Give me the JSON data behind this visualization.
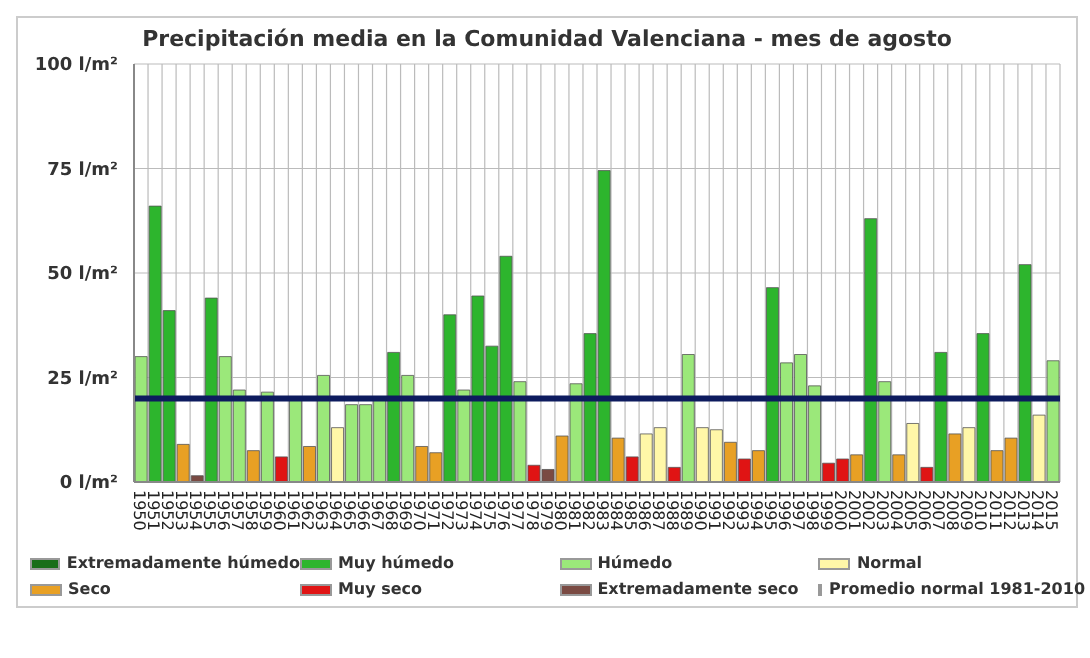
{
  "chart_data": {
    "type": "bar",
    "title": "Precipitación media en la Comunidad Valenciana - mes de agosto",
    "categories": [
      "1950",
      "1951",
      "1952",
      "1953",
      "1954",
      "1955",
      "1956",
      "1957",
      "1958",
      "1959",
      "1960",
      "1961",
      "1962",
      "1963",
      "1964",
      "1965",
      "1966",
      "1967",
      "1968",
      "1969",
      "1970",
      "1971",
      "1972",
      "1973",
      "1974",
      "1975",
      "1976",
      "1977",
      "1978",
      "1979",
      "1980",
      "1981",
      "1982",
      "1983",
      "1984",
      "1985",
      "1986",
      "1987",
      "1988",
      "1989",
      "1990",
      "1991",
      "1992",
      "1993",
      "1994",
      "1995",
      "1996",
      "1997",
      "1998",
      "1999",
      "2000",
      "2001",
      "2002",
      "2003",
      "2004",
      "2005",
      "2006",
      "2007",
      "2008",
      "2009",
      "2010",
      "2011",
      "2012",
      "2013",
      "2014",
      "2015"
    ],
    "stacked": true,
    "series": [
      {
        "name": "Extremadamente húmedo",
        "color": "#1a6e1a",
        "values": [
          null,
          null,
          null,
          null,
          null,
          null,
          null,
          null,
          null,
          null,
          null,
          null,
          null,
          null,
          null,
          null,
          null,
          null,
          null,
          null,
          null,
          null,
          null,
          null,
          null,
          null,
          null,
          null,
          null,
          null,
          null,
          null,
          null,
          null,
          null,
          null,
          null,
          null,
          null,
          null,
          null,
          null,
          null,
          null,
          null,
          null,
          null,
          null,
          null,
          null,
          null,
          null,
          null,
          null,
          null,
          null,
          null,
          null,
          null,
          null,
          null,
          null,
          null,
          null,
          null,
          null
        ]
      },
      {
        "name": "Muy húmedo",
        "color": "#2db52d",
        "values": [
          null,
          66,
          41,
          null,
          null,
          44,
          null,
          null,
          null,
          null,
          null,
          null,
          null,
          null,
          null,
          null,
          null,
          null,
          31,
          null,
          null,
          null,
          40,
          null,
          44.5,
          32.5,
          54,
          null,
          null,
          null,
          null,
          null,
          35.5,
          74.5,
          null,
          null,
          null,
          null,
          null,
          null,
          null,
          null,
          null,
          null,
          null,
          46.5,
          null,
          null,
          null,
          null,
          null,
          null,
          63,
          null,
          null,
          null,
          null,
          31,
          null,
          null,
          35.5,
          null,
          null,
          52,
          null,
          null
        ]
      },
      {
        "name": "Húmedo",
        "color": "#9be87a",
        "values": [
          30,
          null,
          null,
          null,
          null,
          null,
          30,
          22,
          null,
          21.5,
          null,
          19.5,
          null,
          25.5,
          null,
          18.5,
          18.5,
          19.5,
          null,
          25.5,
          null,
          null,
          null,
          22,
          null,
          null,
          null,
          24,
          null,
          null,
          null,
          23.5,
          null,
          null,
          null,
          null,
          null,
          null,
          null,
          30.5,
          null,
          null,
          null,
          null,
          null,
          null,
          28.5,
          30.5,
          23,
          null,
          null,
          null,
          null,
          24,
          null,
          null,
          null,
          null,
          null,
          null,
          null,
          null,
          null,
          null,
          null,
          29
        ]
      },
      {
        "name": "Normal",
        "color": "#fff7a8",
        "values": [
          null,
          null,
          null,
          null,
          null,
          null,
          null,
          null,
          null,
          null,
          null,
          null,
          null,
          null,
          13,
          null,
          null,
          null,
          null,
          null,
          null,
          null,
          null,
          null,
          null,
          null,
          null,
          null,
          null,
          null,
          null,
          null,
          null,
          null,
          null,
          null,
          11.5,
          13,
          null,
          null,
          13,
          12.5,
          null,
          null,
          null,
          null,
          null,
          null,
          null,
          null,
          null,
          null,
          null,
          null,
          null,
          14,
          null,
          null,
          null,
          13,
          null,
          null,
          null,
          null,
          16,
          null
        ]
      },
      {
        "name": "Seco",
        "color": "#e8a024",
        "values": [
          null,
          null,
          null,
          9,
          null,
          null,
          null,
          null,
          7.5,
          null,
          null,
          null,
          8.5,
          null,
          null,
          null,
          null,
          null,
          null,
          null,
          8.5,
          7,
          null,
          null,
          null,
          null,
          null,
          null,
          null,
          null,
          11,
          null,
          null,
          null,
          10.5,
          null,
          null,
          null,
          null,
          null,
          null,
          null,
          9.5,
          null,
          7.5,
          null,
          null,
          null,
          null,
          null,
          null,
          6.5,
          null,
          null,
          6.5,
          null,
          null,
          null,
          11.5,
          null,
          null,
          7.5,
          10.5,
          null,
          null,
          null
        ]
      },
      {
        "name": "Muy seco",
        "color": "#e01414",
        "values": [
          null,
          null,
          null,
          null,
          null,
          null,
          null,
          null,
          null,
          null,
          6,
          null,
          null,
          null,
          null,
          null,
          null,
          null,
          null,
          null,
          null,
          null,
          null,
          null,
          null,
          null,
          null,
          null,
          4,
          null,
          null,
          null,
          null,
          null,
          null,
          6,
          null,
          null,
          3.5,
          null,
          null,
          null,
          null,
          5.5,
          null,
          null,
          null,
          null,
          null,
          4.5,
          5.5,
          null,
          null,
          null,
          null,
          null,
          3.5,
          null,
          null,
          null,
          null,
          null,
          null,
          null,
          null,
          null
        ]
      },
      {
        "name": "Extremadamente seco",
        "color": "#7a4a42",
        "values": [
          null,
          null,
          null,
          null,
          1.5,
          null,
          null,
          null,
          null,
          null,
          null,
          null,
          null,
          null,
          null,
          null,
          null,
          null,
          null,
          null,
          null,
          null,
          null,
          null,
          null,
          null,
          null,
          null,
          null,
          3,
          null,
          null,
          null,
          null,
          null,
          null,
          null,
          null,
          null,
          null,
          null,
          null,
          null,
          null,
          null,
          null,
          null,
          null,
          null,
          null,
          null,
          null,
          null,
          null,
          null,
          null,
          null,
          null,
          null,
          null,
          null,
          null,
          null,
          null,
          null,
          null
        ]
      }
    ],
    "ref_lines": [
      {
        "axis": "y",
        "value": 20,
        "label": "Promedio normal 1981-2010",
        "color": "#0d1b5e"
      }
    ],
    "ylim": [
      0,
      100
    ],
    "yticks": [
      {
        "value": 0,
        "label": "0 l/m²"
      },
      {
        "value": 25,
        "label": "25 l/m²"
      },
      {
        "value": 50,
        "label": "50 l/m²"
      },
      {
        "value": 75,
        "label": "75 l/m²"
      },
      {
        "value": 100,
        "label": "100 l/m²"
      }
    ],
    "grid": true,
    "legend": "bottom"
  }
}
